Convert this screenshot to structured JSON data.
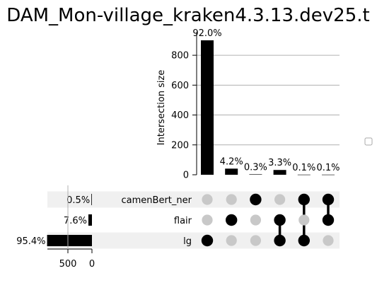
{
  "chart_data": {
    "type": "upset",
    "title": "DAM_Mon-village_kraken4.3.13.dev25.t",
    "intersections": {
      "ylabel": "Intersection size",
      "ylim": [
        0,
        900
      ],
      "yticks": [
        0,
        200,
        400,
        600,
        800
      ],
      "grid": true,
      "bars": [
        {
          "value": 900,
          "label": "92.0%",
          "members": [
            "lg"
          ]
        },
        {
          "value": 41,
          "label": "4.2%",
          "members": [
            "flair"
          ]
        },
        {
          "value": 3,
          "label": "0.3%",
          "members": [
            "camenBert_ner"
          ]
        },
        {
          "value": 32,
          "label": "3.3%",
          "members": [
            "flair",
            "lg"
          ]
        },
        {
          "value": 1,
          "label": "0.1%",
          "members": [
            "camenBert_ner",
            "lg"
          ]
        },
        {
          "value": 1,
          "label": "0.1%",
          "members": [
            "camenBert_ner",
            "flair"
          ]
        }
      ]
    },
    "sets": [
      {
        "name": "camenBert_ner",
        "value": 5,
        "label": "0.5%"
      },
      {
        "name": "flair",
        "value": 74,
        "label": "7.6%"
      },
      {
        "name": "lg",
        "value": 933,
        "label": "95.4%"
      }
    ],
    "set_size_ticks": [
      500,
      0
    ],
    "legend": {
      "placement": "right",
      "entries": [
        ""
      ]
    }
  },
  "colors": {
    "bar": "#000000",
    "active_dot": "#000000",
    "inactive_dot": "#c8c8c8",
    "stripe": "#f0f0f0",
    "grid": "#b0b0b0"
  }
}
